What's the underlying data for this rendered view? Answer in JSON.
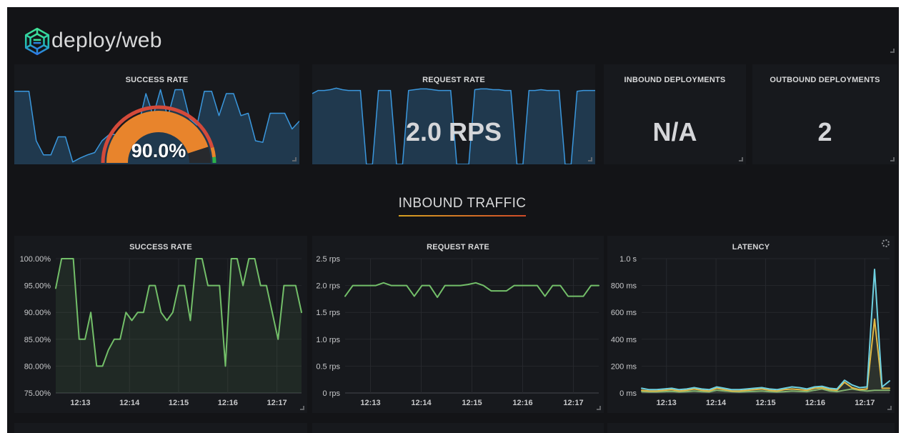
{
  "header": {
    "title": "deploy/web",
    "logo_icon": "hexagonal-mesh-logo"
  },
  "top_row": {
    "success_rate": {
      "title": "SUCCESS RATE",
      "gauge": {
        "value_label": "90.0%",
        "percent": 90,
        "arc_color": "#e8842c",
        "rest_color": "#27292d",
        "ring_red": "#d44a3a",
        "ring_orange": "#e8842c",
        "ring_green": "#2db34a"
      }
    },
    "request_rate": {
      "title": "REQUEST RATE",
      "value": "2.0 RPS"
    },
    "inbound_deployments": {
      "title": "INBOUND DEPLOYMENTS",
      "value": "N/A"
    },
    "outbound_deployments": {
      "title": "OUTBOUND DEPLOYMENTS",
      "value": "2"
    }
  },
  "section_header": {
    "title": "INBOUND TRAFFIC"
  },
  "colors": {
    "page_bg": "#ffffff",
    "dashboard_bg": "#131417",
    "panel_bg": "#17191d",
    "title_text": "#d8d9da",
    "value_text": "#d5d6d9",
    "axis_text": "#c8c9cb",
    "grid": "#26282d",
    "grid_strong": "#45484d",
    "spark_line": "#3a97dd",
    "spark_fill": "rgba(58,140,210,0.28)",
    "section_underline_from": "#d5a021",
    "section_underline_to": "#cf4b28"
  },
  "chart_data": [
    {
      "id": "success-rate-sparkline",
      "type": "area",
      "normalized": true,
      "line_color": "#3a97dd",
      "fill_color": "rgba(58,140,210,0.28)",
      "values": [
        0.93,
        0.93,
        0.93,
        0.3,
        0.12,
        0.12,
        0.35,
        0.35,
        0.03,
        0.08,
        0.12,
        0.15,
        0.3,
        0.38,
        0.38,
        0.35,
        0.45,
        0.5,
        0.9,
        0.62,
        0.95,
        0.6,
        0.95,
        0.95,
        0.58,
        0.5,
        0.93,
        0.93,
        0.62,
        0.9,
        0.9,
        0.62,
        0.65,
        0.3,
        0.28,
        0.65,
        0.65,
        0.65,
        0.45,
        0.55
      ]
    },
    {
      "id": "request-rate-sparkline",
      "type": "area",
      "normalized": true,
      "line_color": "#3a97dd",
      "fill_color": "rgba(58,140,210,0.28)",
      "values": [
        0.9,
        0.94,
        0.94,
        0.95,
        0.97,
        0.95,
        0.94,
        0.94,
        0.94,
        0.0,
        0.0,
        0.94,
        0.94,
        0.94,
        0.0,
        0.0,
        0.94,
        0.95,
        0.96,
        0.96,
        0.95,
        0.94,
        0.94,
        0.94,
        0.0,
        0.0,
        0.0,
        0.95,
        0.96,
        0.96,
        0.95,
        0.95,
        0.94,
        0.94,
        0.0,
        0.0,
        0.94,
        0.94,
        0.95,
        0.94,
        0.94,
        0.94,
        0.0,
        0.0,
        0.93,
        0.94,
        0.94,
        0.94
      ]
    },
    {
      "id": "inbound-success-rate",
      "type": "line",
      "title": "SUCCESS RATE",
      "x_ticks": [
        "12:13",
        "12:14",
        "12:15",
        "12:16",
        "12:17"
      ],
      "y_ticks": [
        "100.00%",
        "95.00%",
        "90.00%",
        "85.00%",
        "80.00%",
        "75.00%"
      ],
      "y_values": [
        100,
        95,
        90,
        85,
        80,
        75
      ],
      "ylim": [
        75,
        100
      ],
      "grid": true,
      "legend": "none",
      "series": [
        {
          "name": "series-green",
          "color": "#73bf69",
          "fill": "rgba(115,191,105,0.10)",
          "values": [
            94.5,
            100,
            100,
            100,
            85,
            85,
            90,
            80,
            80,
            83,
            85,
            85,
            90,
            88.5,
            90,
            90,
            95,
            95,
            90,
            88.5,
            90,
            95,
            95,
            88.5,
            100,
            100,
            95,
            95,
            95,
            80,
            100,
            100,
            95,
            100,
            100,
            95,
            95,
            90,
            85,
            95,
            95,
            95,
            90
          ]
        }
      ]
    },
    {
      "id": "inbound-request-rate",
      "type": "line",
      "title": "REQUEST RATE",
      "x_ticks": [
        "12:13",
        "12:14",
        "12:15",
        "12:16",
        "12:17"
      ],
      "y_ticks": [
        "2.5 rps",
        "2.0 rps",
        "1.5 rps",
        "1.0 rps",
        "0.5 rps",
        "0 rps"
      ],
      "y_values": [
        2.5,
        2.0,
        1.5,
        1.0,
        0.5,
        0
      ],
      "ylim": [
        0,
        2.5
      ],
      "grid": true,
      "legend": "none",
      "series": [
        {
          "name": "series-green",
          "color": "#73bf69",
          "fill": null,
          "values": [
            1.8,
            2.0,
            2.0,
            2.0,
            2.0,
            2.05,
            2.0,
            2.0,
            2.0,
            1.8,
            2.0,
            2.0,
            1.78,
            2.0,
            2.0,
            2.0,
            2.02,
            2.05,
            2.0,
            1.9,
            1.9,
            1.9,
            2.0,
            2.0,
            2.0,
            2.0,
            1.8,
            2.0,
            2.0,
            1.8,
            1.8,
            1.8,
            2.0,
            2.0
          ]
        }
      ]
    },
    {
      "id": "inbound-latency",
      "type": "line",
      "title": "LATENCY",
      "x_ticks": [
        "12:13",
        "12:14",
        "12:15",
        "12:16",
        "12:17"
      ],
      "y_ticks": [
        "1.0 s",
        "800 ms",
        "600 ms",
        "400 ms",
        "200 ms",
        "0 ms"
      ],
      "y_values": [
        1000,
        800,
        600,
        400,
        200,
        0
      ],
      "ylim": [
        0,
        1000
      ],
      "grid": true,
      "legend": "none",
      "series": [
        {
          "name": "series-green",
          "color": "#7eb26d",
          "fill": null,
          "values": [
            10,
            8,
            8,
            10,
            12,
            8,
            10,
            15,
            10,
            8,
            20,
            15,
            10,
            8,
            10,
            12,
            15,
            10,
            8,
            10,
            15,
            12,
            10,
            20,
            30,
            15,
            10,
            20,
            30,
            20,
            15,
            20,
            20,
            20
          ]
        },
        {
          "name": "series-yellow",
          "color": "#eab839",
          "fill": "rgba(234,184,57,0.08)",
          "values": [
            20,
            15,
            15,
            20,
            25,
            15,
            20,
            30,
            20,
            15,
            35,
            25,
            15,
            15,
            20,
            25,
            30,
            20,
            15,
            25,
            30,
            25,
            20,
            35,
            40,
            25,
            20,
            80,
            40,
            25,
            30,
            550,
            35,
            35
          ]
        },
        {
          "name": "series-cyan",
          "color": "#6ed0e0",
          "fill": "rgba(110,208,224,0.08)",
          "values": [
            35,
            25,
            25,
            30,
            35,
            25,
            30,
            40,
            30,
            25,
            45,
            35,
            25,
            25,
            30,
            35,
            40,
            30,
            25,
            35,
            45,
            40,
            30,
            45,
            50,
            35,
            30,
            95,
            60,
            40,
            45,
            920,
            45,
            90
          ]
        }
      ]
    }
  ]
}
